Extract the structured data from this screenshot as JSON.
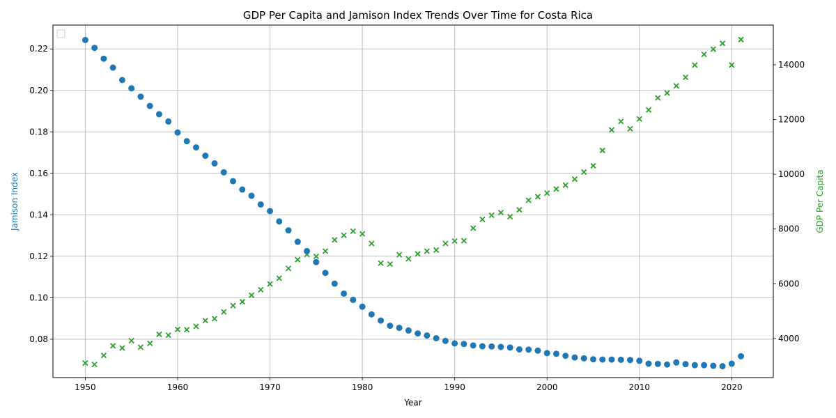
{
  "chart_data": {
    "type": "scatter",
    "title": "GDP Per Capita and Jamison Index Trends Over Time for Costa Rica",
    "xlabel": "Year",
    "ylabel_left": "Jamison Index",
    "ylabel_right": "GDP Per Capita",
    "xlim": [
      1946.5,
      2024.5
    ],
    "ylim_left": [
      0.0615,
      0.2315
    ],
    "ylim_right": [
      2570,
      15450
    ],
    "x_ticks": [
      1950,
      1960,
      1970,
      1980,
      1990,
      2000,
      2010,
      2020
    ],
    "y_ticks_left": [
      0.06,
      0.08,
      0.1,
      0.12,
      0.14,
      0.16,
      0.18,
      0.2,
      0.22
    ],
    "y_tick_labels_left": [
      "0.06",
      "0.08",
      "0.10",
      "0.12",
      "0.14",
      "0.16",
      "0.18",
      "0.20",
      "0.22"
    ],
    "y_ticks_right": [
      4000,
      6000,
      8000,
      10000,
      12000,
      14000
    ],
    "grid": true,
    "legend": "top-left, empty",
    "colors": {
      "jamison": "#1f77b4",
      "gdp": "#2ca02c",
      "axis": "#000000",
      "grid": "#b0b0b0"
    },
    "x": [
      1950,
      1951,
      1952,
      1953,
      1954,
      1955,
      1956,
      1957,
      1958,
      1959,
      1960,
      1961,
      1962,
      1963,
      1964,
      1965,
      1966,
      1967,
      1968,
      1969,
      1970,
      1971,
      1972,
      1973,
      1974,
      1975,
      1976,
      1977,
      1978,
      1979,
      1980,
      1981,
      1982,
      1983,
      1984,
      1985,
      1986,
      1987,
      1988,
      1989,
      1990,
      1991,
      1992,
      1993,
      1994,
      1995,
      1996,
      1997,
      1998,
      1999,
      2000,
      2001,
      2002,
      2003,
      2004,
      2005,
      2006,
      2007,
      2008,
      2009,
      2010,
      2011,
      2012,
      2013,
      2014,
      2015,
      2016,
      2017,
      2018,
      2019,
      2020,
      2021
    ],
    "series": [
      {
        "name": "Jamison Index",
        "axis": "left",
        "marker": "circle",
        "values": [
          0.2243,
          0.2205,
          0.2153,
          0.211,
          0.205,
          0.201,
          0.197,
          0.1925,
          0.1885,
          0.185,
          0.1797,
          0.1755,
          0.1725,
          0.1685,
          0.1648,
          0.1605,
          0.1562,
          0.1522,
          0.1492,
          0.145,
          0.1418,
          0.1368,
          0.1325,
          0.127,
          0.1225,
          0.1172,
          0.112,
          0.1068,
          0.102,
          0.099,
          0.0957,
          0.092,
          0.089,
          0.0865,
          0.0855,
          0.0842,
          0.0828,
          0.0818,
          0.0805,
          0.0792,
          0.078,
          0.0777,
          0.077,
          0.0766,
          0.0765,
          0.0763,
          0.076,
          0.0751,
          0.075,
          0.0745,
          0.0733,
          0.073,
          0.072,
          0.0712,
          0.0708,
          0.0703,
          0.0702,
          0.0702,
          0.0701,
          0.07,
          0.0696,
          0.0682,
          0.0681,
          0.0678,
          0.0688,
          0.068,
          0.0675,
          0.0675,
          0.0672,
          0.067,
          0.0682,
          0.0718
        ]
      },
      {
        "name": "GDP Per Capita",
        "axis": "right",
        "marker": "x",
        "values": [
          3100,
          3050,
          3380,
          3730,
          3650,
          3920,
          3680,
          3820,
          4150,
          4120,
          4330,
          4320,
          4440,
          4650,
          4720,
          4970,
          5200,
          5340,
          5580,
          5780,
          5990,
          6200,
          6560,
          6880,
          7070,
          7000,
          7190,
          7600,
          7770,
          7920,
          7820,
          7470,
          6750,
          6720,
          7060,
          6910,
          7090,
          7190,
          7230,
          7470,
          7560,
          7570,
          8030,
          8350,
          8500,
          8600,
          8450,
          8700,
          9050,
          9180,
          9310,
          9460,
          9600,
          9820,
          10080,
          10310,
          10870,
          11620,
          11930,
          11660,
          12020,
          12350,
          12790,
          12970,
          13230,
          13540,
          13990,
          14380,
          14570,
          14780,
          13990,
          14920
        ]
      }
    ]
  }
}
